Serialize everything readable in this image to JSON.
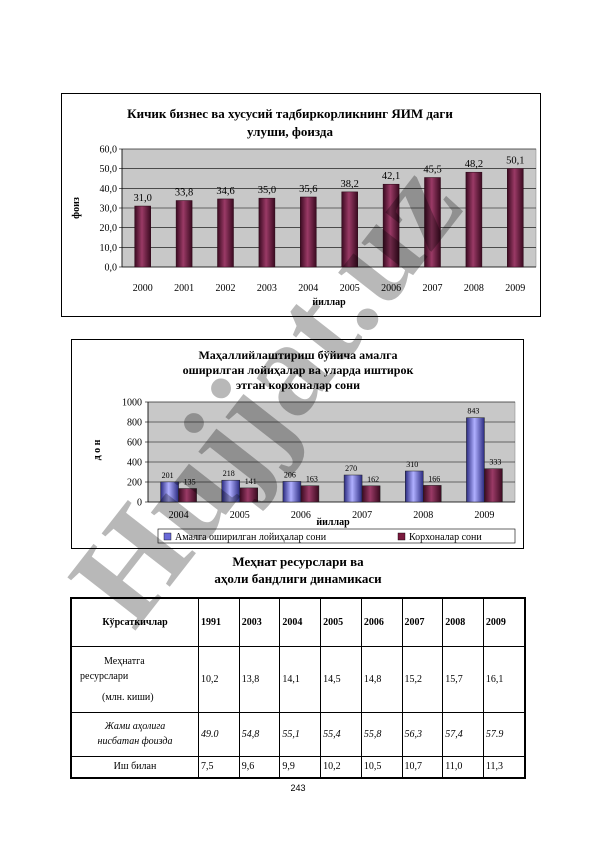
{
  "chart1": {
    "title_line1": "Кичик бизнес ва хусусий тадбиркорликнинг  ЯИМ даги",
    "title_line2": "улуши, фоизда",
    "ylabel": "фоиз",
    "xlabel": "йиллар"
  },
  "chart2": {
    "title_line1": "Маҳаллийлаштириш бўйича амалга",
    "title_line2": "оширилган лойиҳалар ва уларда иштирок",
    "title_line3": "этган корхоналар сони",
    "ylabel": "д о н",
    "xlabel": "йиллар"
  },
  "chart_data": [
    {
      "type": "bar",
      "title": "Кичик бизнес ва хусусий тадбиркорликнинг  ЯИМ даги улуши, фоизда",
      "xlabel": "йиллар",
      "ylabel": "фоиз",
      "categories": [
        "2000",
        "2001",
        "2002",
        "2003",
        "2004",
        "2005",
        "2006",
        "2007",
        "2008",
        "2009"
      ],
      "values": [
        31.0,
        33.8,
        34.6,
        35.0,
        35.6,
        38.2,
        42.1,
        45.5,
        48.2,
        50.1
      ],
      "value_labels": [
        "31,0",
        "33,8",
        "34,6",
        "35,0",
        "35,6",
        "38,2",
        "42,1",
        "45,5",
        "48,2",
        "50,1"
      ],
      "yticks": [
        "0,0",
        "10,0",
        "20,0",
        "30,0",
        "40,0",
        "50,0",
        "60,0"
      ],
      "ylim": [
        0,
        60
      ],
      "grid": true,
      "color": "#6b1a3c"
    },
    {
      "type": "bar",
      "title": "Маҳаллийлаштириш бўйича амалга оширилган лойиҳалар ва уларда иштирок этган корхоналар сони",
      "xlabel": "йиллар",
      "ylabel": "д о н",
      "categories": [
        "2004",
        "2005",
        "2006",
        "2007",
        "2008",
        "2009"
      ],
      "series": [
        {
          "name": "Амалга оширилган лойиҳалар сони",
          "values": [
            201,
            218,
            206,
            270,
            310,
            843
          ],
          "color": "#6a6ad8"
        },
        {
          "name": "Корхоналар сони",
          "values": [
            135,
            141,
            163,
            162,
            166,
            333
          ],
          "color": "#7a1a3e"
        }
      ],
      "yticks": [
        "0",
        "200",
        "400",
        "600",
        "800",
        "1000"
      ],
      "ylim": [
        0,
        1000
      ],
      "grid": true,
      "legend": "bottom"
    }
  ],
  "section_title_line1": "Меҳнат ресурслари ва",
  "section_title_line2": "аҳоли бандлиги динамикаси",
  "table": {
    "header": [
      "Кўрсаткичлар",
      "1991",
      "2003",
      "2004",
      "2005",
      "2006",
      "2007",
      "2008",
      "2009"
    ],
    "row1_label_line1": "Меҳнатга",
    "row1_label_line2": "ресурслари",
    "row1_label_line3": "(млн. киши)",
    "row1": [
      "10,2",
      "13,8",
      "14,1",
      "14,5",
      "14,8",
      "15,2",
      "15,7",
      "16,1"
    ],
    "row2_label_line1": "Жами аҳолига",
    "row2_label_line2": "нисбатан фоизда",
    "row2": [
      "49.0",
      "54,8",
      "55,1",
      "55,4",
      "55,8",
      "56,3",
      "57,4",
      "57.9"
    ],
    "row3_label": "Иш билан",
    "row3": [
      "7,5",
      "9,6",
      "9,9",
      "10,2",
      "10,5",
      "10,7",
      "11,0",
      "11,3"
    ]
  },
  "page_number": "243",
  "watermark": "Hujjat.uz"
}
